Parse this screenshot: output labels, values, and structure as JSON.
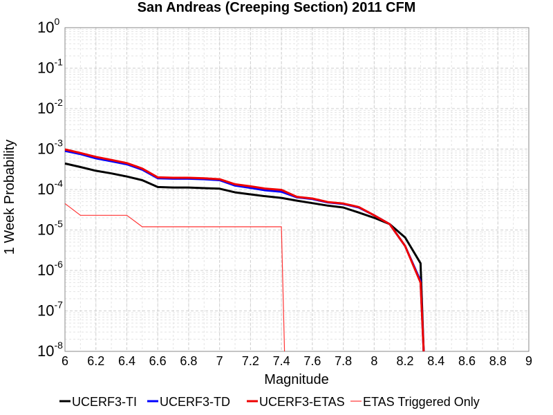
{
  "chart_data": {
    "type": "line",
    "title": "San Andreas (Creeping Section) 2011 CFM",
    "xlabel": "Magnitude",
    "ylabel": "1 Week Probability",
    "xlim": [
      6,
      9
    ],
    "ylim": [
      1e-08,
      1
    ],
    "yscale": "log",
    "grid": true,
    "legend_placement": "bottom",
    "x_ticks": [
      "6",
      "6.2",
      "6.4",
      "6.6",
      "6.8",
      "7",
      "7.2",
      "7.4",
      "7.6",
      "7.8",
      "8",
      "8.2",
      "8.4",
      "8.6",
      "8.8",
      "9"
    ],
    "y_ticks": [
      {
        "base": "10",
        "exp": "0",
        "value": 1
      },
      {
        "base": "10",
        "exp": "-1",
        "value": 0.1
      },
      {
        "base": "10",
        "exp": "-2",
        "value": 0.01
      },
      {
        "base": "10",
        "exp": "-3",
        "value": 0.001
      },
      {
        "base": "10",
        "exp": "-4",
        "value": 0.0001
      },
      {
        "base": "10",
        "exp": "-5",
        "value": 1e-05
      },
      {
        "base": "10",
        "exp": "-6",
        "value": 1e-06
      },
      {
        "base": "10",
        "exp": "-7",
        "value": 1e-07
      },
      {
        "base": "10",
        "exp": "-8",
        "value": 1e-08
      }
    ],
    "series": [
      {
        "name": "UCERF3-TI",
        "color": "#000000",
        "style": "thick",
        "points": [
          [
            6.0,
            0.00044
          ],
          [
            6.1,
            0.00036
          ],
          [
            6.2,
            0.00029
          ],
          [
            6.3,
            0.00025
          ],
          [
            6.4,
            0.00021
          ],
          [
            6.5,
            0.00017
          ],
          [
            6.6,
            0.000115
          ],
          [
            6.7,
            0.000112
          ],
          [
            6.8,
            0.000112
          ],
          [
            6.9,
            0.000108
          ],
          [
            7.0,
            0.000105
          ],
          [
            7.1,
            8.5e-05
          ],
          [
            7.2,
            7.6e-05
          ],
          [
            7.3,
            6.8e-05
          ],
          [
            7.4,
            6.2e-05
          ],
          [
            7.5,
            5.3e-05
          ],
          [
            7.6,
            4.6e-05
          ],
          [
            7.7,
            4e-05
          ],
          [
            7.8,
            3.6e-05
          ],
          [
            7.9,
            2.7e-05
          ],
          [
            8.0,
            2e-05
          ],
          [
            8.1,
            1.4e-05
          ],
          [
            8.2,
            6.5e-06
          ],
          [
            8.3,
            1.5e-06
          ],
          [
            8.32,
            1e-08
          ]
        ]
      },
      {
        "name": "UCERF3-TD",
        "color": "#0000ff",
        "style": "thick",
        "points": [
          [
            6.0,
            0.0009
          ],
          [
            6.1,
            0.00075
          ],
          [
            6.2,
            0.00059
          ],
          [
            6.3,
            0.0005
          ],
          [
            6.4,
            0.00042
          ],
          [
            6.5,
            0.00031
          ],
          [
            6.6,
            0.00019
          ],
          [
            6.7,
            0.000185
          ],
          [
            6.8,
            0.000185
          ],
          [
            6.9,
            0.00018
          ],
          [
            7.0,
            0.00017
          ],
          [
            7.1,
            0.000125
          ],
          [
            7.2,
            0.00011
          ],
          [
            7.3,
            9.5e-05
          ],
          [
            7.4,
            8.8e-05
          ],
          [
            7.5,
            6.4e-05
          ],
          [
            7.6,
            5.8e-05
          ],
          [
            7.7,
            4.8e-05
          ],
          [
            7.8,
            4.4e-05
          ],
          [
            7.9,
            3.6e-05
          ],
          [
            8.0,
            2.3e-05
          ],
          [
            8.1,
            1.4e-05
          ],
          [
            8.2,
            4e-06
          ],
          [
            8.3,
            5.5e-07
          ],
          [
            8.32,
            1e-08
          ]
        ]
      },
      {
        "name": "UCERF3-ETAS",
        "color": "#ee0000",
        "style": "thick",
        "points": [
          [
            6.0,
            0.00098
          ],
          [
            6.1,
            0.0008
          ],
          [
            6.2,
            0.00064
          ],
          [
            6.3,
            0.00054
          ],
          [
            6.4,
            0.00045
          ],
          [
            6.5,
            0.00033
          ],
          [
            6.6,
            0.0002
          ],
          [
            6.7,
            0.000195
          ],
          [
            6.8,
            0.000195
          ],
          [
            6.9,
            0.00019
          ],
          [
            7.0,
            0.00018
          ],
          [
            7.1,
            0.000135
          ],
          [
            7.2,
            0.00012
          ],
          [
            7.3,
            0.000105
          ],
          [
            7.4,
            9.8e-05
          ],
          [
            7.5,
            6.6e-05
          ],
          [
            7.6,
            6e-05
          ],
          [
            7.7,
            4.9e-05
          ],
          [
            7.8,
            4.5e-05
          ],
          [
            7.9,
            3.7e-05
          ],
          [
            8.0,
            2.3e-05
          ],
          [
            8.1,
            1.4e-05
          ],
          [
            8.2,
            4e-06
          ],
          [
            8.3,
            5e-07
          ],
          [
            8.32,
            1e-08
          ]
        ]
      },
      {
        "name": "ETAS Triggered Only",
        "color": "#ff3333",
        "style": "thin",
        "points": [
          [
            6.0,
            4.5e-05
          ],
          [
            6.1,
            2.3e-05
          ],
          [
            6.2,
            2.3e-05
          ],
          [
            6.3,
            2.3e-05
          ],
          [
            6.4,
            2.3e-05
          ],
          [
            6.5,
            1.2e-05
          ],
          [
            6.6,
            1.2e-05
          ],
          [
            6.7,
            1.2e-05
          ],
          [
            6.8,
            1.2e-05
          ],
          [
            6.9,
            1.2e-05
          ],
          [
            7.0,
            1.2e-05
          ],
          [
            7.1,
            1.2e-05
          ],
          [
            7.2,
            1.2e-05
          ],
          [
            7.3,
            1.2e-05
          ],
          [
            7.4,
            1.2e-05
          ],
          [
            7.42,
            1e-08
          ]
        ]
      }
    ]
  }
}
